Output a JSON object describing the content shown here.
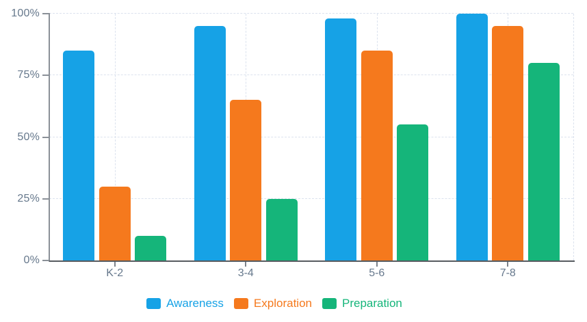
{
  "chart_data": {
    "type": "bar",
    "title": "",
    "categories": [
      "K-2",
      "3-4",
      "5-6",
      "7-8"
    ],
    "series": [
      {
        "name": "Awareness",
        "color": "#16a2e6",
        "values": [
          85,
          95,
          98,
          100
        ]
      },
      {
        "name": "Exploration",
        "color": "#f5791d",
        "values": [
          30,
          65,
          85,
          95
        ]
      },
      {
        "name": "Preparation",
        "color": "#15b57a",
        "values": [
          10,
          25,
          55,
          80
        ]
      }
    ],
    "xlabel": "",
    "ylabel": "",
    "ylim": [
      0,
      100
    ],
    "y_tick_values": [
      0,
      25,
      50,
      75,
      100
    ],
    "y_tick_labels": [
      "0%",
      "25%",
      "50%",
      "75%",
      "100%"
    ],
    "grid": "dashed",
    "legend_position": "bottom"
  },
  "colors": {
    "axis_label": "#66788c",
    "grid_line": "#dbe2ee",
    "y_axis_line": "#8a9097",
    "x_axis_line": "#565a5f"
  }
}
